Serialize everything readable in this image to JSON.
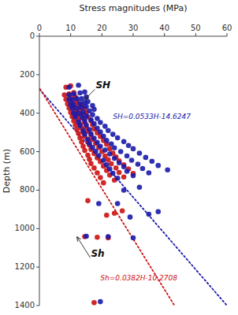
{
  "chart_data": {
    "type": "scatter",
    "xlabel": "Stress magnitudes (MPa)",
    "ylabel": "Depth (m)",
    "xlim": [
      0,
      60
    ],
    "ylim": [
      1400,
      0
    ],
    "xticks": [
      0,
      10,
      20,
      30,
      40,
      50,
      60
    ],
    "yticks": [
      0,
      200,
      400,
      600,
      800,
      1000,
      1200,
      1400
    ],
    "grid": false,
    "annotations": [
      "SH",
      "Sh",
      "SH=0.0533H-14.6247",
      "Sh=0.0382H-10.2708"
    ],
    "series": [
      {
        "type": "scatter",
        "marker": "circle",
        "color": "#cc1111",
        "x": [
          8.5,
          10.0,
          8.0,
          9.5,
          11.0,
          8.5,
          10.0,
          11.5,
          9.0,
          10.5,
          12.0,
          9.5,
          11.0,
          12.5,
          13.5,
          10.0,
          11.5,
          13.0,
          14.5,
          10.5,
          12.0,
          13.5,
          15.0,
          11.0,
          12.5,
          14.0,
          15.5,
          11.5,
          13.0,
          14.5,
          16.5,
          12.0,
          13.5,
          15.0,
          17.0,
          12.5,
          14.0,
          15.5,
          17.5,
          13.0,
          14.5,
          16.5,
          18.5,
          13.5,
          15.5,
          17.0,
          19.5,
          14.0,
          16.0,
          18.0,
          20.5,
          14.5,
          16.5,
          19.0,
          21.5,
          15.5,
          17.5,
          20.0,
          22.5,
          16.0,
          18.5,
          21.0,
          23.5,
          16.5,
          19.5,
          22.0,
          24.5,
          17.5,
          20.5,
          23.0,
          25.5,
          18.5,
          21.5,
          24.5,
          27.0,
          19.5,
          22.5,
          25.5,
          28.5,
          20.5,
          24.0,
          27.0,
          30.0,
          15.5,
          21.5,
          24.0,
          26.5,
          14.5,
          18.5,
          22.0,
          17.5
        ],
        "values": [
          265,
          258,
          305,
          300,
          293,
          328,
          322,
          315,
          352,
          346,
          339,
          374,
          368,
          361,
          355,
          396,
          390,
          383,
          375,
          418,
          412,
          405,
          397,
          440,
          435,
          428,
          420,
          462,
          457,
          450,
          440,
          484,
          478,
          472,
          460,
          506,
          500,
          494,
          482,
          528,
          522,
          515,
          502,
          550,
          544,
          537,
          522,
          572,
          566,
          558,
          542,
          594,
          588,
          578,
          562,
          618,
          610,
          600,
          585,
          640,
          632,
          622,
          608,
          662,
          652,
          642,
          628,
          685,
          675,
          663,
          648,
          710,
          698,
          685,
          668,
          735,
          722,
          708,
          690,
          762,
          748,
          732,
          714,
          855,
          930,
          920,
          908,
          1042,
          1045,
          1048,
          1385
        ]
      },
      {
        "type": "scatter",
        "marker": "circle",
        "color": "#1a1aaa",
        "x": [
          9.5,
          12.5,
          9.5,
          11.0,
          13.0,
          14.5,
          9.5,
          10.5,
          12.0,
          13.5,
          15.0,
          10.0,
          11.0,
          13.0,
          14.5,
          15.5,
          10.5,
          12.0,
          13.5,
          15.0,
          17.0,
          11.0,
          12.5,
          14.0,
          16.0,
          17.5,
          11.5,
          13.5,
          15.0,
          17.0,
          12.5,
          14.5,
          16.5,
          18.5,
          13.0,
          15.0,
          17.5,
          19.5,
          14.0,
          16.0,
          18.5,
          21.0,
          14.5,
          16.5,
          19.5,
          22.0,
          15.5,
          17.5,
          20.5,
          23.5,
          16.0,
          18.5,
          21.5,
          25.0,
          17.0,
          19.5,
          23.0,
          27.0,
          18.0,
          21.0,
          24.0,
          28.5,
          19.0,
          22.5,
          26.0,
          30.0,
          20.5,
          24.0,
          28.0,
          32.0,
          21.5,
          25.5,
          29.5,
          34.0,
          22.5,
          27.0,
          31.5,
          36.0,
          23.5,
          28.0,
          33.0,
          38.0,
          25.0,
          30.0,
          35.0,
          41.0,
          27.0,
          32.0,
          19.0,
          25.0,
          29.0,
          35.0,
          38.0,
          15.0,
          22.0,
          30.0,
          19.5
        ],
        "values": [
          265,
          255,
          305,
          300,
          295,
          290,
          330,
          330,
          325,
          325,
          315,
          355,
          355,
          350,
          345,
          340,
          375,
          375,
          370,
          365,
          360,
          400,
          400,
          395,
          388,
          380,
          420,
          420,
          415,
          408,
          445,
          440,
          435,
          428,
          465,
          462,
          455,
          448,
          490,
          485,
          478,
          468,
          510,
          508,
          498,
          490,
          535,
          530,
          520,
          510,
          558,
          552,
          542,
          528,
          578,
          572,
          560,
          548,
          598,
          592,
          580,
          568,
          620,
          612,
          600,
          585,
          645,
          635,
          622,
          608,
          668,
          658,
          645,
          630,
          690,
          678,
          665,
          650,
          712,
          702,
          688,
          672,
          738,
          725,
          710,
          695,
          800,
          785,
          870,
          870,
          940,
          925,
          912,
          1040,
          1042,
          1048,
          1380
        ]
      },
      {
        "type": "line",
        "line_style": "dotted",
        "color": "#1a1aaa",
        "x": [
          0.0328,
          59.9953
        ],
        "values": [
          275,
          1400
        ]
      },
      {
        "type": "line",
        "line_style": "dotted",
        "color": "#cc1111",
        "x": [
          0.2342,
          43.2092
        ],
        "values": [
          275,
          1400
        ]
      }
    ]
  }
}
